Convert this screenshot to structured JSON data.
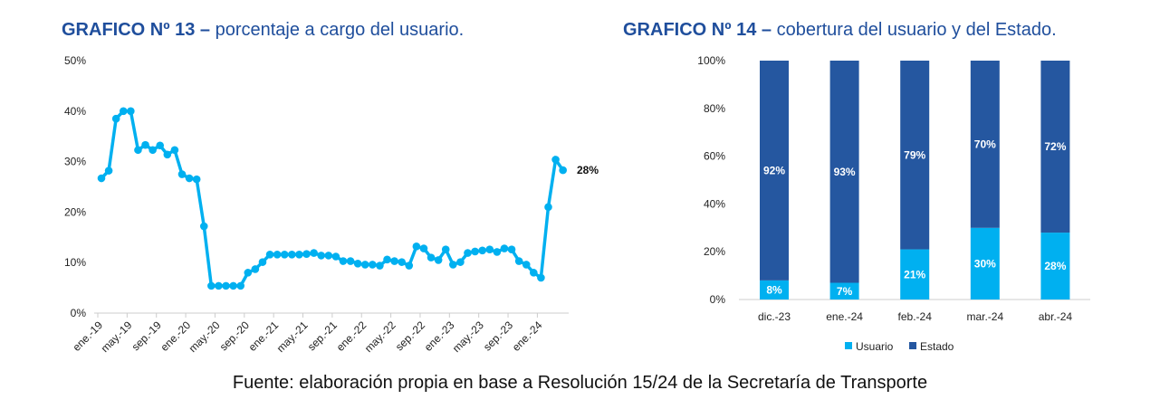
{
  "chart_data": [
    {
      "type": "line",
      "title_bold": "GRAFICO Nº 13 –",
      "title_rest": " porcentaje a cargo del usuario.",
      "ylim": [
        0,
        50
      ],
      "yticks": [
        "0%",
        "10%",
        "20%",
        "30%",
        "40%",
        "50%"
      ],
      "xtick_labels": [
        "ene.-19",
        "may.-19",
        "sep.-19",
        "ene.-20",
        "may.-20",
        "sep.-20",
        "ene.-21",
        "may.-21",
        "sep.-21",
        "ene.-22",
        "may.-22",
        "sep.-22",
        "ene.-23",
        "may.-23",
        "sep.-23",
        "ene.-24"
      ],
      "x_start": "ene.-19",
      "x_end": "abr.-24",
      "values": [
        26.7,
        28.2,
        38.5,
        40,
        40,
        32.3,
        33.3,
        32.3,
        33.2,
        31.4,
        32.3,
        27.5,
        26.7,
        26.5,
        17.2,
        5.4,
        5.4,
        5.4,
        5.4,
        5.4,
        8.0,
        8.7,
        10.1,
        11.6,
        11.6,
        11.6,
        11.6,
        11.6,
        11.7,
        11.9,
        11.4,
        11.4,
        11.2,
        10.3,
        10.3,
        9.8,
        9.6,
        9.6,
        9.4,
        10.6,
        10.3,
        10.1,
        9.4,
        13.2,
        12.8,
        11.0,
        10.5,
        12.6,
        9.6,
        10.1,
        11.9,
        12.2,
        12.4,
        12.6,
        12.1,
        12.8,
        12.6,
        10.3,
        9.6,
        8.0,
        7.0,
        21.0,
        30.4,
        28.3
      ],
      "last_label": "28%",
      "color": "#00b0f0"
    },
    {
      "type": "bar",
      "stacked": true,
      "title_bold": "GRAFICO Nº 14 –",
      "title_rest": " cobertura del usuario y del Estado.",
      "ylim": [
        0,
        100
      ],
      "yticks": [
        "0%",
        "20%",
        "40%",
        "60%",
        "80%",
        "100%"
      ],
      "categories": [
        "dic.-23",
        "ene.-24",
        "feb.-24",
        "mar.-24",
        "abr.-24"
      ],
      "series": [
        {
          "name": "Usuario",
          "values": [
            8,
            7,
            21,
            30,
            28
          ],
          "labels": [
            "8%",
            "7%",
            "21%",
            "30%",
            "28%"
          ],
          "color": "#00b0f0"
        },
        {
          "name": "Estado",
          "values": [
            92,
            93,
            79,
            70,
            72
          ],
          "labels": [
            "92%",
            "93%",
            "79%",
            "70%",
            "72%"
          ],
          "color": "#2557a0"
        }
      ],
      "legend": "bottom"
    }
  ],
  "footer": "Fuente: elaboración propia en base a Resolución 15/24 de la Secretaría de Transporte"
}
